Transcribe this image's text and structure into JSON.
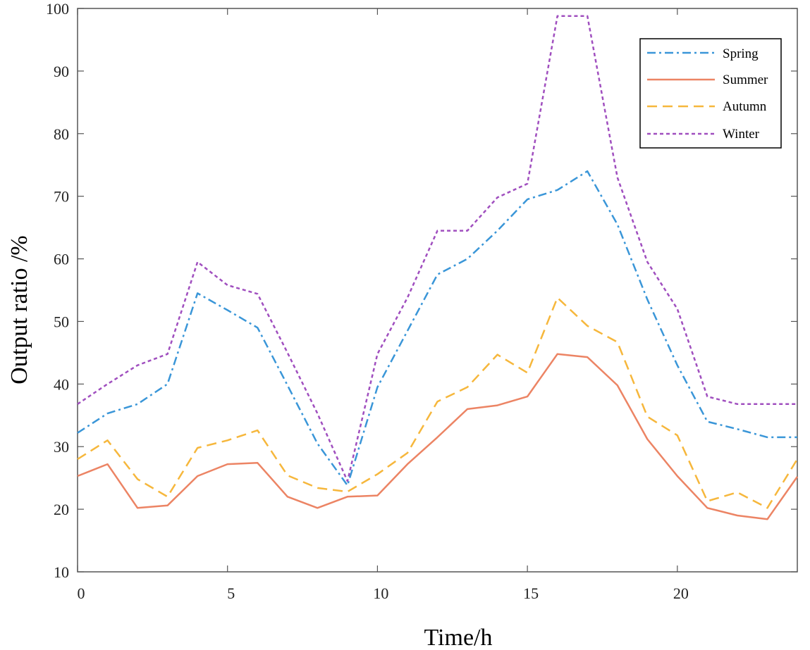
{
  "chart_data": {
    "type": "line",
    "title": "",
    "xlabel": "Time/h",
    "ylabel": "Output ratio /%",
    "xlim": [
      0,
      24
    ],
    "ylim": [
      10,
      100
    ],
    "xticks": [
      0,
      5,
      10,
      15,
      20
    ],
    "yticks": [
      10,
      20,
      30,
      40,
      50,
      60,
      70,
      80,
      90,
      100
    ],
    "grid": false,
    "legend_position": "top-right",
    "x": [
      0,
      1,
      2,
      3,
      4,
      5,
      6,
      7,
      8,
      9,
      10,
      11,
      12,
      13,
      14,
      15,
      16,
      17,
      18,
      19,
      20,
      21,
      22,
      23,
      24
    ],
    "series": [
      {
        "name": "Spring",
        "color": "#3a96d8",
        "dash": "dash-dot",
        "values": [
          32.2,
          35.3,
          36.8,
          40.0,
          54.5,
          51.8,
          49.0,
          39.8,
          30.5,
          23.8,
          39.5,
          48.5,
          57.5,
          60.0,
          64.5,
          69.5,
          71.0,
          74.0,
          65.5,
          53.5,
          43.0,
          34.0,
          32.8,
          31.5,
          31.5
        ]
      },
      {
        "name": "Summer",
        "color": "#ec8464",
        "dash": "solid",
        "values": [
          25.3,
          27.2,
          20.2,
          20.6,
          25.3,
          27.2,
          27.4,
          22.0,
          20.2,
          22.0,
          22.2,
          27.2,
          31.5,
          36.0,
          36.6,
          38.0,
          44.8,
          44.3,
          39.8,
          31.2,
          25.3,
          20.2,
          19.0,
          18.4,
          25.2
        ]
      },
      {
        "name": "Autumn",
        "color": "#f6b73c",
        "dash": "dashed",
        "values": [
          28.0,
          31.0,
          24.8,
          22.0,
          29.8,
          31.0,
          32.6,
          25.4,
          23.4,
          22.8,
          25.6,
          29.0,
          37.2,
          39.5,
          44.7,
          41.8,
          53.8,
          49.3,
          46.7,
          34.8,
          31.8,
          21.3,
          22.7,
          20.2,
          28.0
        ]
      },
      {
        "name": "Winter",
        "color": "#a04fbf",
        "dash": "dotted",
        "values": [
          36.8,
          40.0,
          43.0,
          44.8,
          59.5,
          55.8,
          54.4,
          45.0,
          35.3,
          24.5,
          44.8,
          53.8,
          64.5,
          64.5,
          69.8,
          72.0,
          98.8,
          98.8,
          73.0,
          59.5,
          52.0,
          38.0,
          36.8,
          36.8,
          36.8
        ]
      }
    ]
  }
}
